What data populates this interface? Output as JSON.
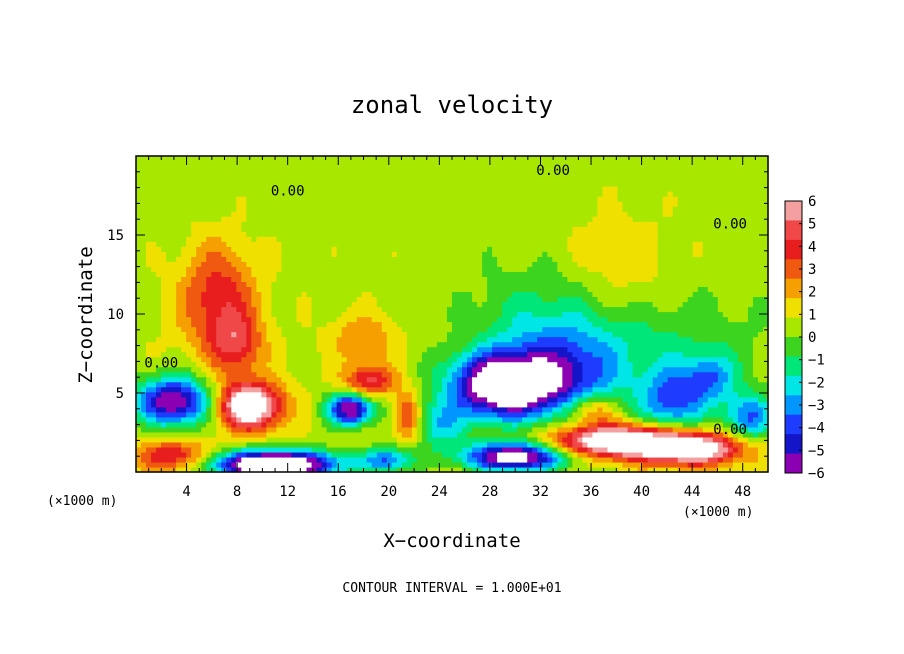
{
  "chart_data": {
    "type": "heatmap",
    "title": "zonal velocity",
    "xlabel": "X−coordinate",
    "ylabel": "Z−coordinate",
    "x_scale_note": "(×1000 m)",
    "y_scale_note": "(×1000 m)",
    "footer": "CONTOUR INTERVAL = 1.000E+01",
    "xlim": [
      0,
      50
    ],
    "ylim": [
      0,
      20
    ],
    "x_ticks": [
      4,
      8,
      12,
      16,
      20,
      24,
      28,
      32,
      36,
      40,
      44,
      48
    ],
    "y_ticks": [
      5,
      10,
      15
    ],
    "colorbar": {
      "range": [
        -6,
        6
      ],
      "tick_values": [
        6,
        5,
        4,
        3,
        2,
        1,
        0,
        -1,
        -2,
        -3,
        -4,
        -5,
        -6
      ],
      "tick_labels": [
        "6",
        "5",
        "4",
        "3",
        "2",
        "1",
        "0",
        "−1",
        "−2",
        "−3",
        "−4",
        "−5",
        "−6"
      ],
      "colors": [
        "#f5a0a0",
        "#f04848",
        "#e81e1e",
        "#f05a10",
        "#f5a000",
        "#f0e000",
        "#a8e800",
        "#3cd41e",
        "#00e678",
        "#00e6e6",
        "#0096ff",
        "#1e3cff",
        "#1414c8",
        "#8c00b4"
      ]
    },
    "contour_labels": [
      {
        "text": "0.00",
        "x": 12.0,
        "y": 17.5
      },
      {
        "text": "0.00",
        "x": 33.0,
        "y": 18.8
      },
      {
        "text": "0.00",
        "x": 47.0,
        "y": 15.4
      },
      {
        "text": "0.00",
        "x": 2.0,
        "y": 6.6
      },
      {
        "text": "0.00",
        "x": 47.0,
        "y": 2.4
      }
    ],
    "features": [
      {
        "v": 3.5,
        "x": 6.5,
        "y": 11.0,
        "sx": 3.0,
        "sy": 3.5
      },
      {
        "v": 3.0,
        "x": 8.0,
        "y": 8.0,
        "sx": 2.0,
        "sy": 2.0
      },
      {
        "v": 2.0,
        "x": 18.0,
        "y": 8.5,
        "sx": 2.5,
        "sy": 1.5
      },
      {
        "v": 1.5,
        "x": 38.0,
        "y": 12.0,
        "sx": 5.0,
        "sy": 4.0
      },
      {
        "v": -1.8,
        "x": 40.0,
        "y": 8.0,
        "sx": 9.0,
        "sy": 4.0
      },
      {
        "v": -2.0,
        "x": 33.0,
        "y": 9.0,
        "sx": 6.0,
        "sy": 4.0
      },
      {
        "v": -3.0,
        "x": 34.0,
        "y": 6.0,
        "sx": 4.0,
        "sy": 2.5
      },
      {
        "v": -9.0,
        "x": 29.0,
        "y": 5.5,
        "sx": 4.0,
        "sy": 2.0
      },
      {
        "v": -4.0,
        "x": 42.5,
        "y": 4.5,
        "sx": 2.5,
        "sy": 2.0
      },
      {
        "v": -3.0,
        "x": 45.5,
        "y": 6.0,
        "sx": 2.0,
        "sy": 1.5
      },
      {
        "v": -4.0,
        "x": 48.5,
        "y": 3.5,
        "sx": 2.0,
        "sy": 1.5
      },
      {
        "v": -7.0,
        "x": 3.0,
        "y": 4.5,
        "sx": 3.0,
        "sy": 1.5
      },
      {
        "v": 8.0,
        "x": 9.0,
        "y": 4.2,
        "sx": 2.5,
        "sy": 1.4
      },
      {
        "v": 4.0,
        "x": 18.5,
        "y": 5.8,
        "sx": 2.0,
        "sy": 1.0
      },
      {
        "v": -7.0,
        "x": 17.0,
        "y": 4.0,
        "sx": 1.8,
        "sy": 1.0
      },
      {
        "v": 3.5,
        "x": 21.5,
        "y": 3.5,
        "sx": 1.0,
        "sy": 1.5
      },
      {
        "v": 8.0,
        "x": 38.0,
        "y": 2.0,
        "sx": 5.0,
        "sy": 1.0
      },
      {
        "v": 7.0,
        "x": 44.0,
        "y": 1.5,
        "sx": 4.0,
        "sy": 1.0
      },
      {
        "v": 4.0,
        "x": 3.0,
        "y": 1.0,
        "sx": 3.0,
        "sy": 1.0
      },
      {
        "v": -10.0,
        "x": 11.0,
        "y": 0.5,
        "sx": 5.0,
        "sy": 0.9
      },
      {
        "v": -8.0,
        "x": 30.0,
        "y": 1.0,
        "sx": 4.0,
        "sy": 0.9
      },
      {
        "v": 3.0,
        "x": 36.0,
        "y": 4.0,
        "sx": 2.0,
        "sy": 1.0
      },
      {
        "v": -3.0,
        "x": 24.0,
        "y": 3.0,
        "sx": 2.0,
        "sy": 1.5
      },
      {
        "v": -4.0,
        "x": 20.0,
        "y": 0.8,
        "sx": 2.0,
        "sy": 0.8
      }
    ]
  }
}
